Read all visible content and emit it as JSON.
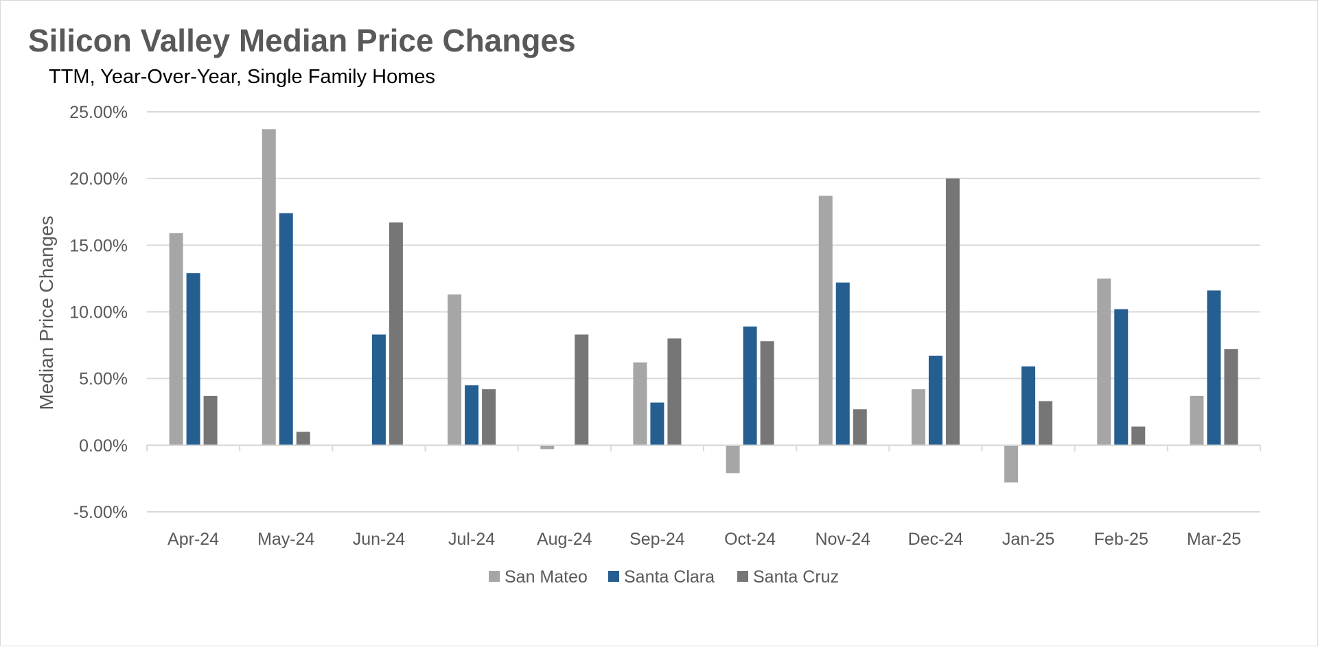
{
  "chart_data": {
    "type": "bar",
    "title": "Silicon Valley Median Price Changes",
    "subtitle": "TTM, Year-Over-Year, Single Family Homes",
    "xlabel": "",
    "ylabel": "Median Price Changes",
    "ylim": [
      -0.05,
      0.25
    ],
    "yticks": [
      {
        "value": 0.25,
        "label": "25.00%"
      },
      {
        "value": 0.2,
        "label": "20.00%"
      },
      {
        "value": 0.15,
        "label": "15.00%"
      },
      {
        "value": 0.1,
        "label": "10.00%"
      },
      {
        "value": 0.05,
        "label": "5.00%"
      },
      {
        "value": 0.0,
        "label": "0.00%"
      },
      {
        "value": -0.05,
        "label": "-5.00%"
      }
    ],
    "grid": true,
    "legend_position": "bottom",
    "categories": [
      "Apr-24",
      "May-24",
      "Jun-24",
      "Jul-24",
      "Aug-24",
      "Sep-24",
      "Oct-24",
      "Nov-24",
      "Dec-24",
      "Jan-25",
      "Feb-25",
      "Mar-25"
    ],
    "series": [
      {
        "name": "San Mateo",
        "color": "#a6a6a6",
        "values": [
          0.159,
          0.237,
          0.0,
          0.113,
          -0.003,
          0.062,
          -0.021,
          0.187,
          0.042,
          -0.028,
          0.125,
          0.037
        ]
      },
      {
        "name": "Santa Clara",
        "color": "#255e91",
        "values": [
          0.129,
          0.174,
          0.083,
          0.045,
          0.0,
          0.032,
          0.089,
          0.122,
          0.067,
          0.059,
          0.102,
          0.116
        ]
      },
      {
        "name": "Santa Cruz",
        "color": "#767676",
        "values": [
          0.037,
          0.01,
          0.167,
          0.042,
          0.083,
          0.08,
          0.078,
          0.027,
          0.2,
          0.033,
          0.014,
          0.072
        ]
      }
    ]
  }
}
